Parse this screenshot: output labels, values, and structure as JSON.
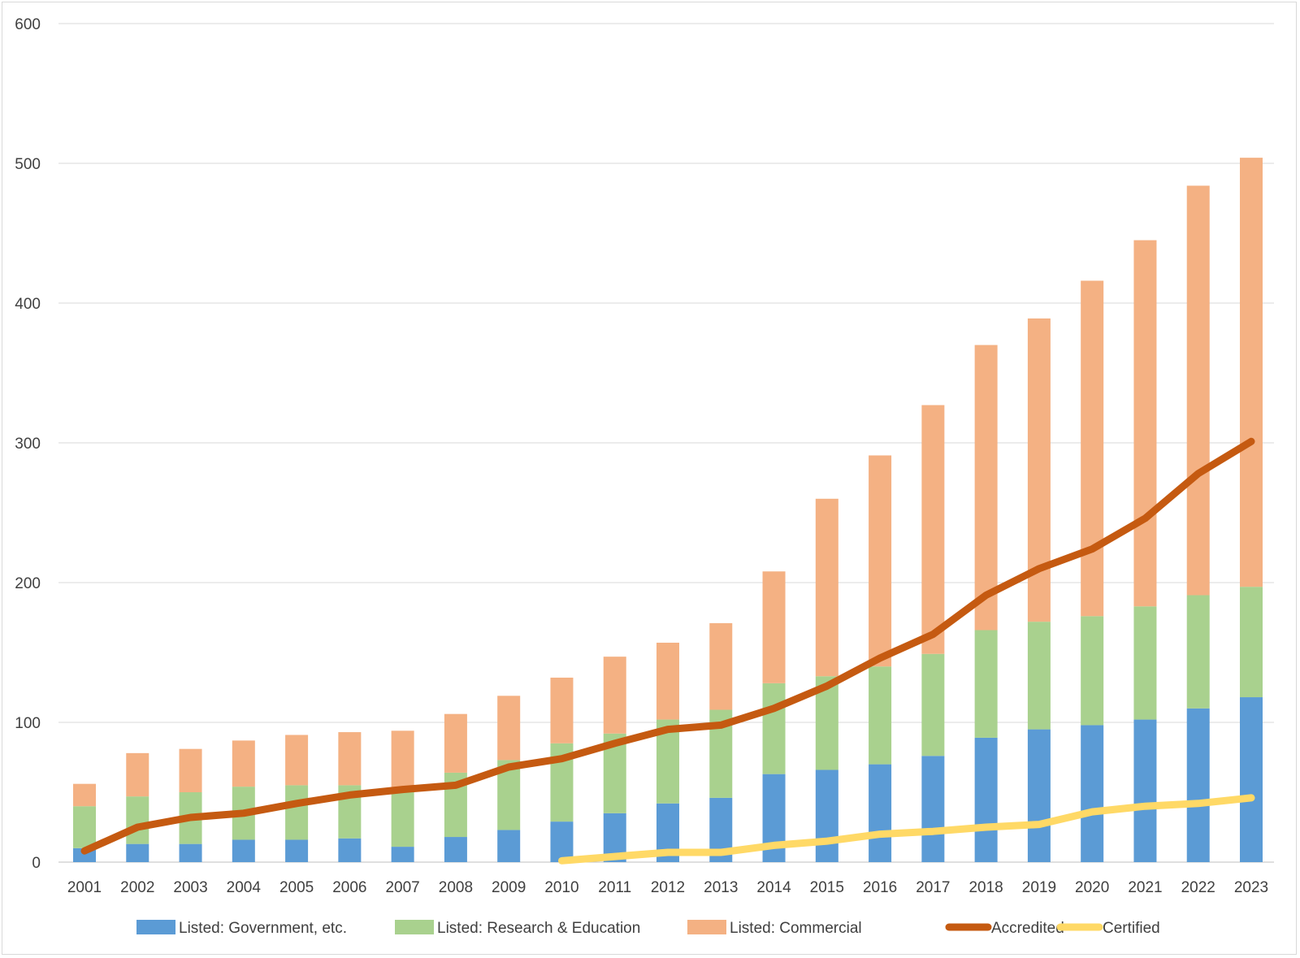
{
  "chart_data": {
    "type": "bar",
    "stacked": true,
    "categories": [
      "2001",
      "2002",
      "2003",
      "2004",
      "2005",
      "2006",
      "2007",
      "2008",
      "2009",
      "2010",
      "2011",
      "2012",
      "2013",
      "2014",
      "2015",
      "2016",
      "2017",
      "2018",
      "2019",
      "2020",
      "2021",
      "2022",
      "2023"
    ],
    "ylim": [
      0,
      600
    ],
    "yticks": [
      0,
      100,
      200,
      300,
      400,
      500,
      600
    ],
    "grid": true,
    "legend_position": "bottom",
    "bar_series": [
      {
        "name": "Listed: Government, etc.",
        "color": "#5b9bd5",
        "values": [
          10,
          13,
          13,
          16,
          16,
          17,
          11,
          18,
          23,
          29,
          35,
          42,
          46,
          63,
          66,
          70,
          76,
          89,
          95,
          98,
          102,
          110,
          118
        ]
      },
      {
        "name": "Listed: Research & Education",
        "color": "#a9d18e",
        "values": [
          30,
          34,
          37,
          38,
          39,
          38,
          40,
          46,
          50,
          56,
          57,
          60,
          63,
          65,
          67,
          70,
          73,
          77,
          77,
          78,
          81,
          81,
          79
        ]
      },
      {
        "name": "Listed: Commercial",
        "color": "#f4b183",
        "values": [
          16,
          31,
          31,
          33,
          36,
          38,
          43,
          42,
          46,
          47,
          55,
          55,
          62,
          80,
          127,
          151,
          178,
          204,
          217,
          240,
          262,
          293,
          307
        ]
      }
    ],
    "line_series": [
      {
        "name": "Accredited",
        "color": "#c55a11",
        "x": [
          "2001",
          "2002",
          "2003",
          "2004",
          "2005",
          "2006",
          "2007",
          "2008",
          "2009",
          "2010",
          "2011",
          "2012",
          "2013",
          "2014",
          "2015",
          "2016",
          "2017",
          "2018",
          "2019",
          "2020",
          "2021",
          "2022",
          "2023"
        ],
        "values": [
          8,
          25,
          32,
          35,
          42,
          48,
          52,
          55,
          68,
          74,
          85,
          95,
          98,
          110,
          126,
          146,
          163,
          191,
          210,
          224,
          246,
          278,
          301
        ]
      },
      {
        "name": "Certified",
        "color": "#ffd966",
        "x": [
          "2010",
          "2011",
          "2012",
          "2013",
          "2014",
          "2015",
          "2016",
          "2017",
          "2018",
          "2019",
          "2020",
          "2021",
          "2022",
          "2023"
        ],
        "values": [
          1,
          4,
          7,
          7,
          12,
          15,
          20,
          22,
          25,
          27,
          36,
          40,
          42,
          46
        ]
      }
    ]
  }
}
